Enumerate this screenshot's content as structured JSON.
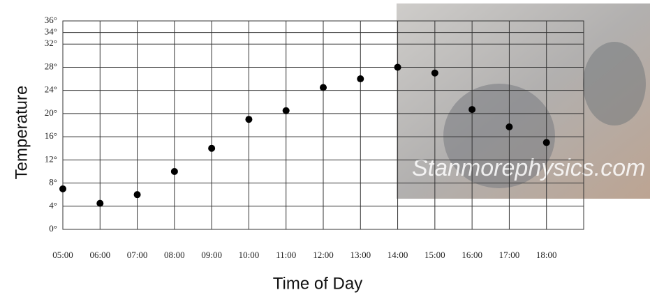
{
  "chart_data": {
    "type": "scatter",
    "x_label": "Time of Day",
    "y_label": "Temperature",
    "watermark": "Stanmorephysics.com",
    "categories": [
      "05:00",
      "06:00",
      "07:00",
      "08:00",
      "09:00",
      "10:00",
      "11:00",
      "12:00",
      "13:00",
      "14:00",
      "15:00",
      "16:00",
      "17:00",
      "18:00"
    ],
    "values": [
      7,
      4.5,
      6,
      10,
      14,
      19,
      20.5,
      24.5,
      26,
      28,
      27,
      20.7,
      17.7,
      15
    ],
    "color": "#000000",
    "ylim": [
      0,
      36
    ],
    "yticks": [
      {
        "value": 0,
        "label": "0°"
      },
      {
        "value": 4,
        "label": "4°"
      },
      {
        "value": 8,
        "label": "8°"
      },
      {
        "value": 12,
        "label": "12°"
      },
      {
        "value": 16,
        "label": "16°"
      },
      {
        "value": 20,
        "label": "20°"
      },
      {
        "value": 24,
        "label": "24°"
      },
      {
        "value": 28,
        "label": "28°"
      },
      {
        "value": 32,
        "label": "32°"
      },
      {
        "value": 34,
        "label": "34°"
      },
      {
        "value": 36,
        "label": "36°"
      }
    ],
    "grid": true
  }
}
